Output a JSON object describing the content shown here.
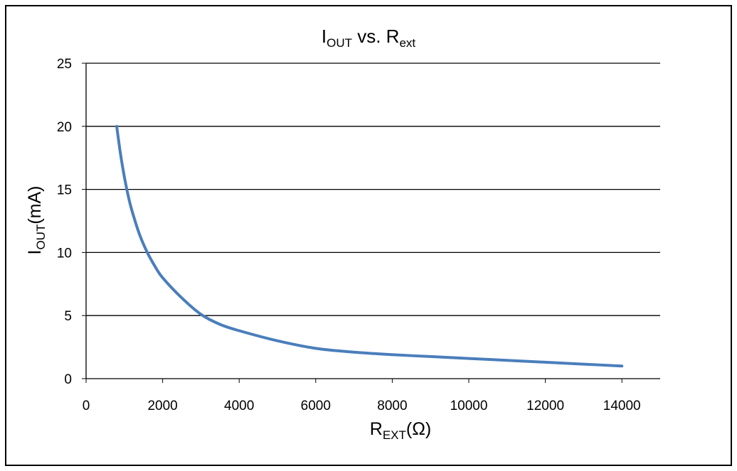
{
  "chart_data": {
    "type": "line",
    "title": {
      "main": "I",
      "sub": "OUT",
      "middle": " vs. R",
      "sub2": "ext"
    },
    "xlabel": {
      "main": "R",
      "sub": "EXT",
      "suffix": "(Ω)"
    },
    "ylabel": {
      "main": "I",
      "sub": "OUT",
      "suffix": "(mA)"
    },
    "xlim": [
      0,
      15000
    ],
    "ylim": [
      0,
      25
    ],
    "xticks": [
      0,
      2000,
      4000,
      6000,
      8000,
      10000,
      12000,
      14000
    ],
    "yticks": [
      0,
      5,
      10,
      15,
      20,
      25
    ],
    "grid": {
      "horizontal": true,
      "vertical": false
    },
    "legend": "none",
    "line_color": "#4a7ebb",
    "series": [
      {
        "x": [
          800,
          900,
          1000,
          1100,
          1200,
          1400,
          1600,
          1800,
          2000,
          2500,
          3000,
          3500,
          4000,
          5000,
          6000,
          7000,
          8000,
          9000,
          10000,
          11000,
          12000,
          13000,
          14000
        ],
        "y": [
          20.0,
          17.8,
          16.0,
          14.5,
          13.3,
          11.4,
          10.0,
          8.9,
          8.0,
          6.4,
          5.1,
          4.3,
          3.8,
          3.0,
          2.4,
          2.1,
          1.9,
          1.75,
          1.6,
          1.45,
          1.3,
          1.15,
          1.0
        ]
      }
    ]
  }
}
